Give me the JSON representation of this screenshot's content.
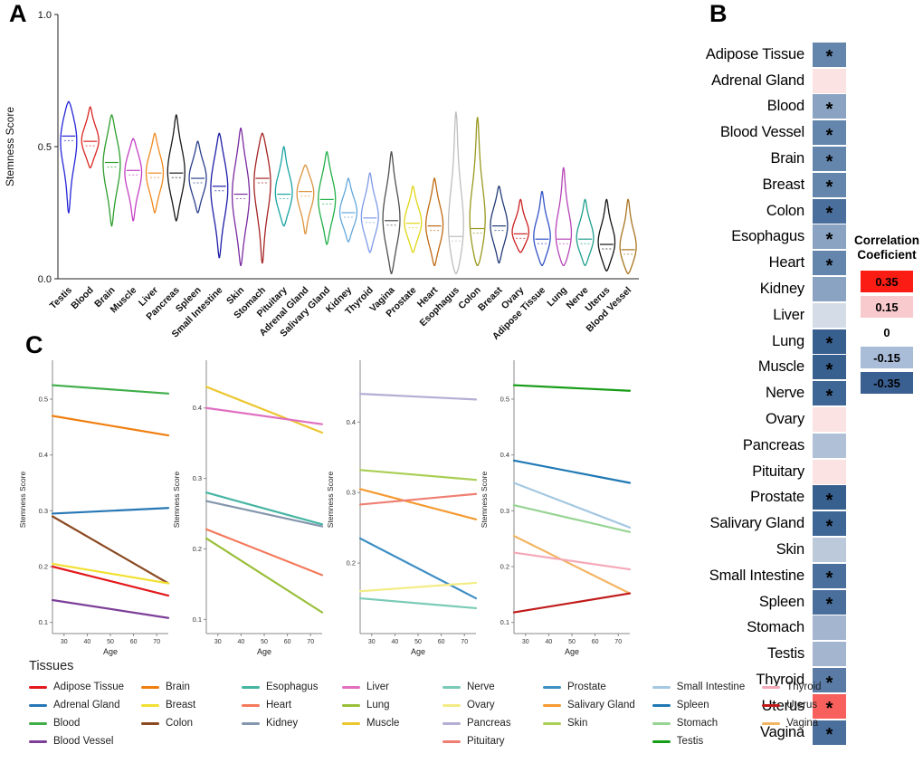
{
  "panels": {
    "a_label": "A",
    "b_label": "B",
    "c_label": "C"
  },
  "tissue_colors": {
    "Adipose Tissue": "#e3191c",
    "Adrenal Gland": "#2677b5",
    "Blood": "#3fae49",
    "Blood Vessel": "#7d3f98",
    "Brain": "#f07f10",
    "Breast": "#f2e033",
    "Colon": "#8b4a22",
    "Esophagus": "#45b5a2",
    "Heart": "#f4795b",
    "Kidney": "#8496ad",
    "Liver": "#e06fc0",
    "Lung": "#9abf3a",
    "Muscle": "#ecc62f",
    "Nerve": "#79cbb8",
    "Ovary": "#f3ec86",
    "Pancreas": "#b3aed3",
    "Pituitary": "#ef7e72",
    "Prostate": "#3f8fc4",
    "Salivary Gland": "#f59a32",
    "Skin": "#a9cf54",
    "Small Intestine": "#a5c8e1",
    "Spleen": "#1f78b4",
    "Stomach": "#97d494",
    "Testis": "#169c16",
    "Thyroid": "#f4a9b8",
    "Uterus": "#c01a1a",
    "Vagina": "#f2b563"
  },
  "chart_data": [
    {
      "id": "stemness_by_tissue",
      "type": "violin",
      "title": "",
      "xlabel": "",
      "ylabel": "Stemness Score",
      "ylim": [
        0.0,
        1.0
      ],
      "yticks": [
        "0.0",
        "0.5",
        "1.0"
      ],
      "violins": [
        {
          "tissue": "Testis",
          "color": "#2626d8",
          "median": 0.54,
          "min": 0.25,
          "max": 0.67
        },
        {
          "tissue": "Blood",
          "color": "#d92722",
          "median": 0.52,
          "min": 0.42,
          "max": 0.65
        },
        {
          "tissue": "Brain",
          "color": "#2d9e2d",
          "median": 0.44,
          "min": 0.2,
          "max": 0.62
        },
        {
          "tissue": "Muscle",
          "color": "#c43fc4",
          "median": 0.41,
          "min": 0.22,
          "max": 0.53
        },
        {
          "tissue": "Liver",
          "color": "#ef8a1f",
          "median": 0.4,
          "min": 0.25,
          "max": 0.55
        },
        {
          "tissue": "Pancreas",
          "color": "#1a1a1a",
          "median": 0.4,
          "min": 0.22,
          "max": 0.62
        },
        {
          "tissue": "Spleen",
          "color": "#2b3f8c",
          "median": 0.38,
          "min": 0.25,
          "max": 0.52
        },
        {
          "tissue": "Small Intestine",
          "color": "#1d1da8",
          "median": 0.35,
          "min": 0.08,
          "max": 0.55
        },
        {
          "tissue": "Skin",
          "color": "#7a2ba0",
          "median": 0.32,
          "min": 0.05,
          "max": 0.57
        },
        {
          "tissue": "Stomach",
          "color": "#a52323",
          "median": 0.38,
          "min": 0.06,
          "max": 0.55
        },
        {
          "tissue": "Pituitary",
          "color": "#1ba3a3",
          "median": 0.32,
          "min": 0.2,
          "max": 0.5
        },
        {
          "tissue": "Adrenal Gland",
          "color": "#dd9440",
          "median": 0.33,
          "min": 0.17,
          "max": 0.43
        },
        {
          "tissue": "Salivary Gland",
          "color": "#23b04a",
          "median": 0.3,
          "min": 0.13,
          "max": 0.48
        },
        {
          "tissue": "Kidney",
          "color": "#63a8dd",
          "median": 0.25,
          "min": 0.14,
          "max": 0.38
        },
        {
          "tissue": "Thyroid",
          "color": "#7f9bea",
          "median": 0.23,
          "min": 0.1,
          "max": 0.4
        },
        {
          "tissue": "Vagina",
          "color": "#4f4f4f",
          "median": 0.22,
          "min": 0.02,
          "max": 0.48
        },
        {
          "tissue": "Prostate",
          "color": "#e0d616",
          "median": 0.21,
          "min": 0.1,
          "max": 0.35
        },
        {
          "tissue": "Heart",
          "color": "#c06a13",
          "median": 0.2,
          "min": 0.05,
          "max": 0.38
        },
        {
          "tissue": "Esophagus",
          "color": "#bdbdbd",
          "median": 0.16,
          "min": 0.02,
          "max": 0.63
        },
        {
          "tissue": "Colon",
          "color": "#98981f",
          "median": 0.19,
          "min": 0.05,
          "max": 0.61
        },
        {
          "tissue": "Breast",
          "color": "#233b78",
          "median": 0.2,
          "min": 0.06,
          "max": 0.35
        },
        {
          "tissue": "Ovary",
          "color": "#cb2020",
          "median": 0.17,
          "min": 0.1,
          "max": 0.3
        },
        {
          "tissue": "Adipose Tissue",
          "color": "#3153c6",
          "median": 0.15,
          "min": 0.05,
          "max": 0.33
        },
        {
          "tissue": "Lung",
          "color": "#b744b7",
          "median": 0.15,
          "min": 0.05,
          "max": 0.42
        },
        {
          "tissue": "Nerve",
          "color": "#1f9e8e",
          "median": 0.15,
          "min": 0.05,
          "max": 0.3
        },
        {
          "tissue": "Uterus",
          "color": "#141414",
          "median": 0.13,
          "min": 0.03,
          "max": 0.3
        },
        {
          "tissue": "Blood Vessel",
          "color": "#a8741f",
          "median": 0.11,
          "min": 0.02,
          "max": 0.3
        }
      ]
    },
    {
      "id": "age_correlation_heatmap",
      "type": "heatmap",
      "legend_title_line1": "Correlation",
      "legend_title_line2": "Coeficient",
      "significance_marker": "*",
      "legend_stops": [
        {
          "label": "0.35",
          "color": "#fb1d14"
        },
        {
          "label": "0.15",
          "color": "#f8c9cd"
        },
        {
          "label": "0",
          "color": "#ffffff"
        },
        {
          "label": "-0.15",
          "color": "#a9bcd8"
        },
        {
          "label": "-0.35",
          "color": "#3a5f91"
        }
      ],
      "rows": [
        {
          "tissue": "Adipose Tissue",
          "value": -0.2,
          "significant": true,
          "color": "#6486ad"
        },
        {
          "tissue": "Adrenal Gland",
          "value": 0.05,
          "significant": false,
          "color": "#fbe2e3"
        },
        {
          "tissue": "Blood",
          "value": -0.15,
          "significant": true,
          "color": "#8ba3c2"
        },
        {
          "tissue": "Blood Vessel",
          "value": -0.2,
          "significant": true,
          "color": "#6486ad"
        },
        {
          "tissue": "Brain",
          "value": -0.2,
          "significant": true,
          "color": "#6486ad"
        },
        {
          "tissue": "Breast",
          "value": -0.2,
          "significant": true,
          "color": "#6486ad"
        },
        {
          "tissue": "Colon",
          "value": -0.25,
          "significant": true,
          "color": "#4a6f9c"
        },
        {
          "tissue": "Esophagus",
          "value": -0.15,
          "significant": true,
          "color": "#8ba3c2"
        },
        {
          "tissue": "Heart",
          "value": -0.2,
          "significant": true,
          "color": "#6486ad"
        },
        {
          "tissue": "Kidney",
          "value": -0.15,
          "significant": false,
          "color": "#8ba3c2"
        },
        {
          "tissue": "Liver",
          "value": -0.05,
          "significant": false,
          "color": "#d4dce8"
        },
        {
          "tissue": "Lung",
          "value": -0.3,
          "significant": true,
          "color": "#38608f"
        },
        {
          "tissue": "Muscle",
          "value": -0.3,
          "significant": true,
          "color": "#38608f"
        },
        {
          "tissue": "Nerve",
          "value": -0.28,
          "significant": true,
          "color": "#3f6795"
        },
        {
          "tissue": "Ovary",
          "value": 0.05,
          "significant": false,
          "color": "#fbe2e3"
        },
        {
          "tissue": "Pancreas",
          "value": -0.1,
          "significant": false,
          "color": "#b0c0d6"
        },
        {
          "tissue": "Pituitary",
          "value": 0.05,
          "significant": false,
          "color": "#fbe2e3"
        },
        {
          "tissue": "Prostate",
          "value": -0.3,
          "significant": true,
          "color": "#38608f"
        },
        {
          "tissue": "Salivary Gland",
          "value": -0.28,
          "significant": true,
          "color": "#3f6795"
        },
        {
          "tissue": "Skin",
          "value": -0.08,
          "significant": false,
          "color": "#bcc9db"
        },
        {
          "tissue": "Small Intestine",
          "value": -0.25,
          "significant": true,
          "color": "#4a6f9c"
        },
        {
          "tissue": "Spleen",
          "value": -0.25,
          "significant": true,
          "color": "#4a6f9c"
        },
        {
          "tissue": "Stomach",
          "value": -0.12,
          "significant": false,
          "color": "#a3b5cf"
        },
        {
          "tissue": "Testis",
          "value": -0.12,
          "significant": false,
          "color": "#a3b5cf"
        },
        {
          "tissue": "Thyroid",
          "value": -0.22,
          "significant": true,
          "color": "#5a7ba5"
        },
        {
          "tissue": "Uterus",
          "value": 0.3,
          "significant": true,
          "color": "#f7605c"
        },
        {
          "tissue": "Vagina",
          "value": -0.25,
          "significant": true,
          "color": "#4a6f9c"
        }
      ]
    },
    {
      "id": "stemness_vs_age_trends",
      "type": "line",
      "xlabel": "Age",
      "ylabel": "Stemness Score",
      "x": [
        25,
        75
      ],
      "xticks": [
        30,
        40,
        50,
        60,
        70
      ],
      "legend_title": "Tissues",
      "subplots": [
        {
          "ylim": [
            0.08,
            0.56
          ],
          "yticks": [
            0.1,
            0.2,
            0.3,
            0.4,
            0.5
          ],
          "lines": [
            {
              "tissue": "Blood",
              "y": [
                0.525,
                0.51
              ]
            },
            {
              "tissue": "Brain",
              "y": [
                0.47,
                0.435
              ]
            },
            {
              "tissue": "Adrenal Gland",
              "y": [
                0.295,
                0.305
              ]
            },
            {
              "tissue": "Colon",
              "y": [
                0.29,
                0.17
              ]
            },
            {
              "tissue": "Breast",
              "y": [
                0.205,
                0.17
              ]
            },
            {
              "tissue": "Adipose Tissue",
              "y": [
                0.2,
                0.148
              ]
            },
            {
              "tissue": "Blood Vessel",
              "y": [
                0.14,
                0.108
              ]
            }
          ]
        },
        {
          "ylim": [
            0.08,
            0.46
          ],
          "yticks": [
            0.1,
            0.2,
            0.3,
            0.4
          ],
          "lines": [
            {
              "tissue": "Muscle",
              "y": [
                0.43,
                0.365
              ]
            },
            {
              "tissue": "Liver",
              "y": [
                0.4,
                0.377
              ]
            },
            {
              "tissue": "Esophagus",
              "y": [
                0.28,
                0.235
              ]
            },
            {
              "tissue": "Kidney",
              "y": [
                0.268,
                0.232
              ]
            },
            {
              "tissue": "Heart",
              "y": [
                0.228,
                0.163
              ]
            },
            {
              "tissue": "Lung",
              "y": [
                0.215,
                0.11
              ]
            }
          ]
        },
        {
          "ylim": [
            0.1,
            0.48
          ],
          "yticks": [
            0.2,
            0.3,
            0.4
          ],
          "lines": [
            {
              "tissue": "Pancreas",
              "y": [
                0.44,
                0.432
              ]
            },
            {
              "tissue": "Skin",
              "y": [
                0.332,
                0.318
              ]
            },
            {
              "tissue": "Salivary Gland",
              "y": [
                0.305,
                0.262
              ]
            },
            {
              "tissue": "Pituitary",
              "y": [
                0.283,
                0.298
              ]
            },
            {
              "tissue": "Prostate",
              "y": [
                0.235,
                0.15
              ]
            },
            {
              "tissue": "Ovary",
              "y": [
                0.16,
                0.172
              ]
            },
            {
              "tissue": "Nerve",
              "y": [
                0.15,
                0.136
              ]
            }
          ]
        },
        {
          "ylim": [
            0.08,
            0.56
          ],
          "yticks": [
            0.1,
            0.2,
            0.3,
            0.4,
            0.5
          ],
          "lines": [
            {
              "tissue": "Testis",
              "y": [
                0.525,
                0.515
              ]
            },
            {
              "tissue": "Spleen",
              "y": [
                0.39,
                0.35
              ]
            },
            {
              "tissue": "Small Intestine",
              "y": [
                0.35,
                0.27
              ]
            },
            {
              "tissue": "Stomach",
              "y": [
                0.31,
                0.262
              ]
            },
            {
              "tissue": "Vagina",
              "y": [
                0.255,
                0.152
              ]
            },
            {
              "tissue": "Thyroid",
              "y": [
                0.225,
                0.195
              ]
            },
            {
              "tissue": "Uterus",
              "y": [
                0.118,
                0.152
              ]
            }
          ]
        }
      ],
      "legend_columns": [
        [
          "Adipose Tissue",
          "Adrenal Gland",
          "Blood",
          "Blood Vessel"
        ],
        [
          "Brain",
          "Breast",
          "Colon"
        ],
        [
          "Esophagus",
          "Heart",
          "Kidney"
        ],
        [
          "Liver",
          "Lung",
          "Muscle"
        ],
        [
          "Nerve",
          "Ovary",
          "Pancreas",
          "Pituitary"
        ],
        [
          "Prostate",
          "Salivary Gland",
          "Skin"
        ],
        [
          "Small Intestine",
          "Spleen",
          "Stomach",
          "Testis"
        ],
        [
          "Thyroid",
          "Uterus",
          "Vagina"
        ]
      ]
    }
  ]
}
